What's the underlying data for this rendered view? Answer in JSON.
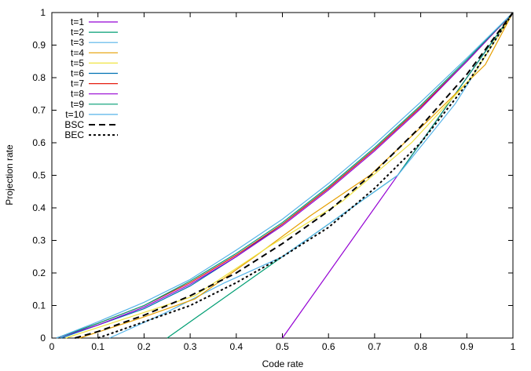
{
  "chart_data": {
    "type": "line",
    "xlabel": "Code rate",
    "ylabel": "Projection rate",
    "xlim": [
      0,
      1
    ],
    "ylim": [
      0,
      1
    ],
    "grid": false,
    "legend_position": "top-left",
    "x_ticks": [
      "0",
      "0.1",
      "0.2",
      "0.3",
      "0.4",
      "0.5",
      "0.6",
      "0.7",
      "0.8",
      "0.9",
      "1"
    ],
    "y_ticks": [
      "0",
      "0.1",
      "0.2",
      "0.3",
      "0.4",
      "0.5",
      "0.6",
      "0.7",
      "0.8",
      "0.9",
      "1"
    ],
    "series": [
      {
        "name": "t=1",
        "color": "#9400d3",
        "dash": "solid",
        "x": [
          0.5,
          1.0
        ],
        "y": [
          0.0,
          1.0
        ]
      },
      {
        "name": "t=2",
        "color": "#009e73",
        "dash": "solid",
        "x": [
          0.25,
          0.5,
          0.75,
          1.0
        ],
        "y": [
          0.0,
          0.25,
          0.5,
          1.0
        ]
      },
      {
        "name": "t=3",
        "color": "#56b4e9",
        "dash": "solid",
        "x": [
          0.125,
          0.25,
          0.375,
          0.5,
          0.625,
          0.75,
          0.875,
          1.0
        ],
        "y": [
          0.0,
          0.08,
          0.17,
          0.25,
          0.375,
          0.5,
          0.72,
          1.0
        ]
      },
      {
        "name": "t=4",
        "color": "#e69f00",
        "dash": "solid",
        "x": [
          0.06,
          0.19,
          0.31,
          0.44,
          0.56,
          0.69,
          0.81,
          0.94,
          1.0
        ],
        "y": [
          0.0,
          0.06,
          0.12,
          0.25,
          0.375,
          0.5,
          0.66,
          0.84,
          1.0
        ]
      },
      {
        "name": "t=5",
        "color": "#f0e442",
        "dash": "solid",
        "x": [
          0.03,
          0.16,
          0.31,
          0.47,
          0.63,
          0.78,
          0.91,
          1.0
        ],
        "y": [
          0.0,
          0.06,
          0.13,
          0.28,
          0.42,
          0.6,
          0.8,
          1.0
        ]
      },
      {
        "name": "t=6",
        "color": "#0072b2",
        "dash": "solid",
        "x": [
          0.02,
          0.1,
          0.2,
          0.3,
          0.4,
          0.5,
          0.6,
          0.7,
          0.8,
          0.9,
          1.0
        ],
        "y": [
          0.0,
          0.04,
          0.09,
          0.16,
          0.25,
          0.35,
          0.46,
          0.58,
          0.71,
          0.85,
          1.0
        ]
      },
      {
        "name": "t=7",
        "color": "#e51e10",
        "dash": "solid",
        "x": [
          0.01,
          0.1,
          0.2,
          0.3,
          0.4,
          0.5,
          0.6,
          0.7,
          0.8,
          0.9,
          1.0
        ],
        "y": [
          0.0,
          0.045,
          0.1,
          0.17,
          0.255,
          0.35,
          0.46,
          0.58,
          0.71,
          0.85,
          1.0
        ]
      },
      {
        "name": "t=8",
        "color": "#9400d3",
        "dash": "solid",
        "x": [
          0.01,
          0.1,
          0.2,
          0.3,
          0.4,
          0.5,
          0.6,
          0.7,
          0.8,
          0.9,
          1.0
        ],
        "y": [
          0.0,
          0.04,
          0.095,
          0.165,
          0.25,
          0.345,
          0.455,
          0.575,
          0.705,
          0.85,
          1.0
        ]
      },
      {
        "name": "t=9",
        "color": "#009e73",
        "dash": "solid",
        "x": [
          0.01,
          0.1,
          0.2,
          0.3,
          0.4,
          0.5,
          0.6,
          0.7,
          0.8,
          0.9,
          1.0
        ],
        "y": [
          0.0,
          0.045,
          0.1,
          0.175,
          0.26,
          0.355,
          0.465,
          0.585,
          0.715,
          0.855,
          1.0
        ]
      },
      {
        "name": "t=10",
        "color": "#56b4e9",
        "dash": "solid",
        "x": [
          0.01,
          0.1,
          0.2,
          0.3,
          0.4,
          0.5,
          0.6,
          0.7,
          0.8,
          0.9,
          1.0
        ],
        "y": [
          0.0,
          0.05,
          0.11,
          0.18,
          0.27,
          0.365,
          0.475,
          0.595,
          0.725,
          0.86,
          1.0
        ]
      },
      {
        "name": "BSC",
        "color": "#000000",
        "dash": "dashed",
        "x": [
          0.05,
          0.1,
          0.2,
          0.3,
          0.4,
          0.5,
          0.6,
          0.7,
          0.8,
          0.9,
          1.0
        ],
        "y": [
          0.0,
          0.02,
          0.07,
          0.13,
          0.2,
          0.29,
          0.39,
          0.51,
          0.65,
          0.81,
          1.0
        ]
      },
      {
        "name": "BEC",
        "color": "#000000",
        "dash": "dotted",
        "x": [
          0.1,
          0.2,
          0.3,
          0.4,
          0.5,
          0.6,
          0.7,
          0.8,
          0.9,
          1.0
        ],
        "y": [
          0.0,
          0.05,
          0.1,
          0.17,
          0.25,
          0.34,
          0.46,
          0.6,
          0.78,
          1.0
        ]
      }
    ]
  }
}
